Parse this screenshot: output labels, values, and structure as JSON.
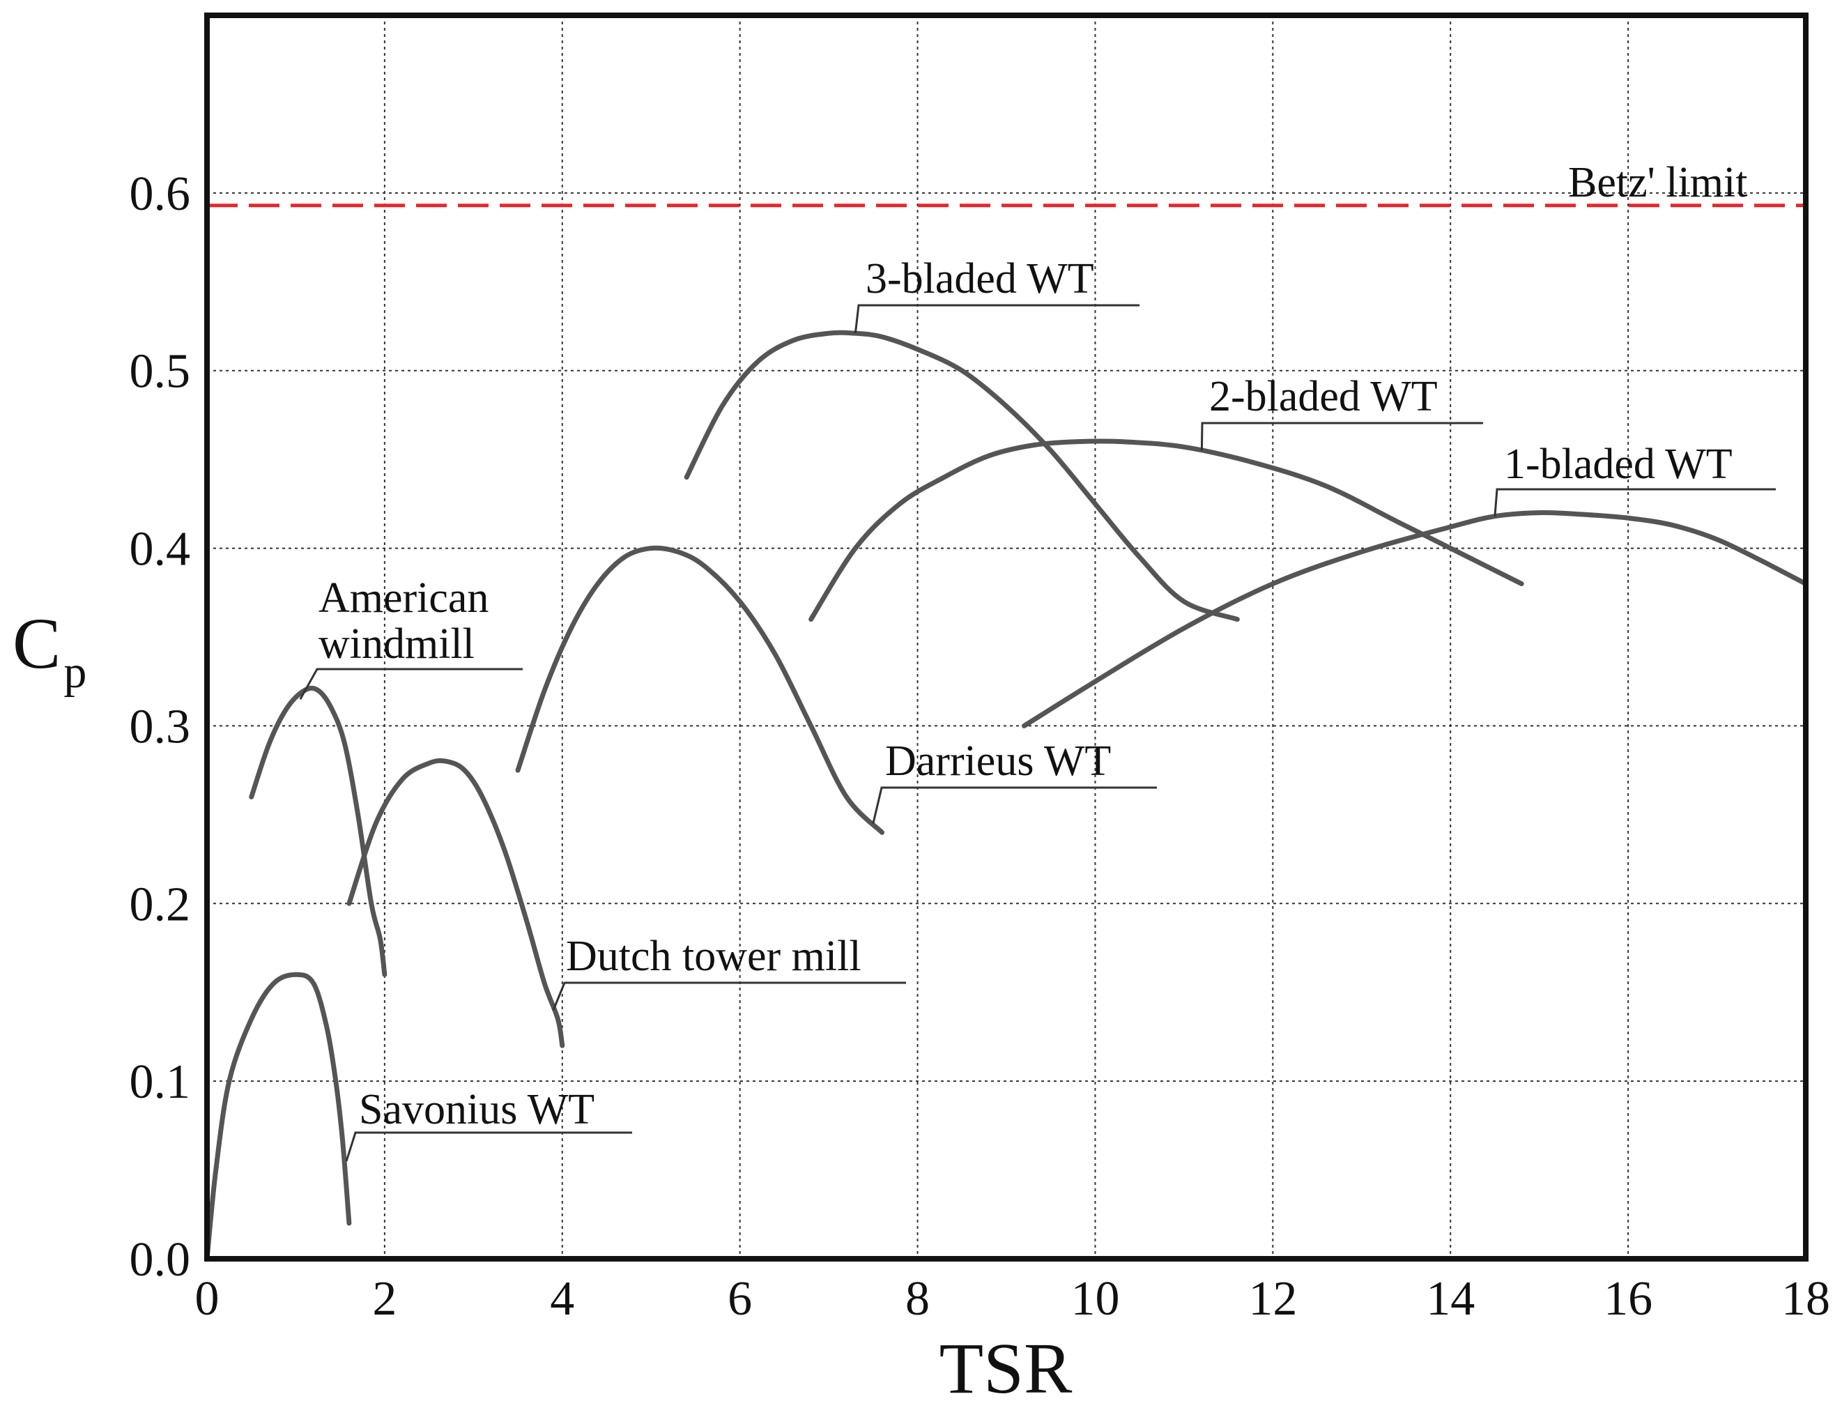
{
  "chart_data": {
    "type": "line",
    "title": "",
    "xlabel": "TSR",
    "ylabel": "C",
    "ylabel_subscript": "p",
    "xlim": [
      0,
      18
    ],
    "ylim": [
      0,
      0.7
    ],
    "grid": true,
    "x_ticks": [
      0,
      2,
      4,
      6,
      8,
      10,
      12,
      14,
      16,
      18
    ],
    "y_ticks": [
      "0.0",
      "0.1",
      "0.2",
      "0.3",
      "0.4",
      "0.5",
      "0.6"
    ],
    "reference_lines": [
      {
        "name": "Betz' limit",
        "y": 0.593,
        "color": "#e8262a",
        "style": "dashed"
      }
    ],
    "series": [
      {
        "name": "Savonius WT",
        "color": "#555555",
        "x": [
          0,
          0.1,
          0.25,
          0.5,
          0.75,
          1.0,
          1.2,
          1.35,
          1.45,
          1.52,
          1.57,
          1.6
        ],
        "y": [
          0.0,
          0.05,
          0.1,
          0.135,
          0.155,
          0.16,
          0.155,
          0.13,
          0.1,
          0.07,
          0.04,
          0.02
        ]
      },
      {
        "name": "American windmill",
        "color": "#555555",
        "x": [
          0.5,
          0.7,
          0.9,
          1.1,
          1.25,
          1.4,
          1.55,
          1.7,
          1.85,
          1.95,
          2.0
        ],
        "y": [
          0.26,
          0.29,
          0.31,
          0.32,
          0.32,
          0.31,
          0.29,
          0.25,
          0.2,
          0.18,
          0.16
        ]
      },
      {
        "name": "Dutch tower mill",
        "color": "#555555",
        "x": [
          1.6,
          1.9,
          2.2,
          2.5,
          2.7,
          2.9,
          3.1,
          3.35,
          3.6,
          3.8,
          3.95,
          4.0
        ],
        "y": [
          0.2,
          0.245,
          0.27,
          0.279,
          0.28,
          0.275,
          0.26,
          0.23,
          0.19,
          0.155,
          0.135,
          0.12
        ]
      },
      {
        "name": "Darrieus WT",
        "color": "#555555",
        "x": [
          3.5,
          3.8,
          4.1,
          4.4,
          4.7,
          5.0,
          5.3,
          5.6,
          6.0,
          6.4,
          6.8,
          7.2,
          7.6
        ],
        "y": [
          0.275,
          0.32,
          0.355,
          0.38,
          0.395,
          0.4,
          0.398,
          0.39,
          0.37,
          0.34,
          0.3,
          0.26,
          0.24
        ]
      },
      {
        "name": "3-bladed WT",
        "color": "#555555",
        "x": [
          5.4,
          5.8,
          6.2,
          6.6,
          7.0,
          7.3,
          7.6,
          8.0,
          8.5,
          9.0,
          9.5,
          10.0,
          10.5,
          11.0,
          11.6
        ],
        "y": [
          0.44,
          0.48,
          0.505,
          0.517,
          0.521,
          0.521,
          0.519,
          0.512,
          0.5,
          0.48,
          0.455,
          0.425,
          0.395,
          0.37,
          0.36
        ]
      },
      {
        "name": "2-bladed WT",
        "color": "#555555",
        "x": [
          6.8,
          7.3,
          7.8,
          8.3,
          8.8,
          9.3,
          9.8,
          10.3,
          11.0,
          11.8,
          12.6,
          13.4,
          14.2,
          14.8
        ],
        "y": [
          0.36,
          0.4,
          0.425,
          0.44,
          0.452,
          0.458,
          0.46,
          0.46,
          0.457,
          0.448,
          0.435,
          0.415,
          0.395,
          0.38
        ]
      },
      {
        "name": "1-bladed WT",
        "color": "#555555",
        "x": [
          9.2,
          10.0,
          11.0,
          12.0,
          13.0,
          14.0,
          14.5,
          15.0,
          15.5,
          16.0,
          16.5,
          17.0,
          17.5,
          18.0
        ],
        "y": [
          0.3,
          0.325,
          0.355,
          0.38,
          0.398,
          0.412,
          0.418,
          0.42,
          0.419,
          0.417,
          0.413,
          0.405,
          0.393,
          0.38
        ]
      }
    ],
    "annotations": [
      {
        "text": "Betz' limit",
        "series": "Betz' limit"
      },
      {
        "text": "3-bladed WT",
        "anchor": [
          7.3,
          0.521
        ]
      },
      {
        "text": "2-bladed WT",
        "anchor": [
          11.2,
          0.455
        ]
      },
      {
        "text": "1-bladed WT",
        "anchor": [
          14.5,
          0.418
        ]
      },
      {
        "text": "American",
        "text2": "windmill",
        "anchor": [
          1.05,
          0.315
        ]
      },
      {
        "text": "Darrieus WT",
        "anchor": [
          7.5,
          0.245
        ]
      },
      {
        "text": "Dutch tower mill",
        "anchor": [
          3.9,
          0.14
        ]
      },
      {
        "text": "Savonius WT",
        "anchor": [
          1.57,
          0.055
        ]
      }
    ]
  }
}
